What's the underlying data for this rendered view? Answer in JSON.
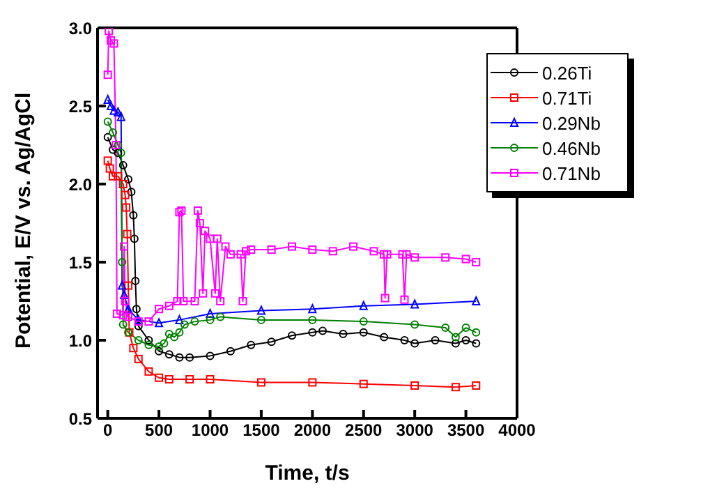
{
  "chart_data": {
    "type": "line",
    "xlabel": "Time, t/s",
    "ylabel": "Potential, E/V vs. Ag/AgCl",
    "xlim": [
      -100,
      4000
    ],
    "xticks": [
      0,
      500,
      1000,
      1500,
      2000,
      2500,
      3000,
      3500,
      4000
    ],
    "ylim": [
      0.5,
      3.0
    ],
    "yticks": [
      {
        "value": 0.5,
        "label": "0.5"
      },
      {
        "value": 1,
        "label": "1.0"
      },
      {
        "value": 1.5,
        "label": "1.5"
      },
      {
        "value": 2,
        "label": "2.0"
      },
      {
        "value": 2.5,
        "label": "2.5"
      },
      {
        "value": 3,
        "label": "3.0"
      }
    ],
    "grid": false,
    "legend": "top right",
    "line_style": "solid",
    "series": [
      {
        "name": "0.26Ti",
        "color": "#000000",
        "marker": "circle",
        "x": [
          0,
          50,
          100,
          150,
          200,
          230,
          250,
          260,
          270,
          280,
          300,
          400,
          500,
          600,
          700,
          800,
          1000,
          1200,
          1400,
          1600,
          1800,
          2000,
          2100,
          2300,
          2500,
          2700,
          2900,
          3000,
          3200,
          3400,
          3500,
          3600
        ],
        "values": [
          2.3,
          2.22,
          2.2,
          2.12,
          2.03,
          1.95,
          1.8,
          1.65,
          1.38,
          1.2,
          1.09,
          1.0,
          0.93,
          0.91,
          0.89,
          0.89,
          0.9,
          0.93,
          0.97,
          0.99,
          1.03,
          1.05,
          1.06,
          1.04,
          1.05,
          1.02,
          1.0,
          0.98,
          1.0,
          0.98,
          1.0,
          0.98
        ]
      },
      {
        "name": "0.71Ti",
        "color": "#ff0000",
        "marker": "square",
        "x": [
          0,
          20,
          50,
          100,
          150,
          170,
          180,
          190,
          200,
          210,
          250,
          300,
          400,
          500,
          600,
          800,
          1000,
          1500,
          2000,
          2500,
          3000,
          3400,
          3600
        ],
        "values": [
          2.15,
          2.1,
          2.05,
          2.05,
          2.0,
          1.93,
          1.85,
          1.68,
          1.35,
          1.05,
          0.95,
          0.88,
          0.8,
          0.76,
          0.75,
          0.75,
          0.75,
          0.73,
          0.73,
          0.72,
          0.71,
          0.7,
          0.71
        ]
      },
      {
        "name": "0.29Nb",
        "color": "#0000ff",
        "marker": "triangle",
        "x": [
          0,
          30,
          60,
          100,
          130,
          140,
          160,
          200,
          300,
          500,
          700,
          1000,
          1500,
          2000,
          2500,
          3000,
          3600
        ],
        "values": [
          2.54,
          2.5,
          2.47,
          2.46,
          2.43,
          1.35,
          1.29,
          1.2,
          1.13,
          1.11,
          1.13,
          1.17,
          1.19,
          1.2,
          1.22,
          1.23,
          1.25
        ]
      },
      {
        "name": "0.46Nb",
        "color": "#008000",
        "marker": "circle",
        "x": [
          0,
          50,
          100,
          130,
          140,
          150,
          200,
          300,
          400,
          500,
          550,
          600,
          650,
          700,
          750,
          850,
          1000,
          1100,
          1500,
          2000,
          2500,
          3000,
          3300,
          3400,
          3500,
          3600
        ],
        "values": [
          2.4,
          2.33,
          2.25,
          2.2,
          1.5,
          1.1,
          1.05,
          1.0,
          0.97,
          0.96,
          0.98,
          1.04,
          1.02,
          1.05,
          1.1,
          1.12,
          1.13,
          1.15,
          1.13,
          1.13,
          1.12,
          1.1,
          1.08,
          1.02,
          1.08,
          1.05
        ]
      },
      {
        "name": "0.71Nb",
        "color": "#ff00ff",
        "marker": "square",
        "x": [
          0,
          10,
          30,
          60,
          80,
          90,
          150,
          160,
          170,
          200,
          300,
          400,
          500,
          600,
          680,
          700,
          720,
          740,
          850,
          880,
          900,
          930,
          950,
          1000,
          1050,
          1070,
          1100,
          1150,
          1200,
          1300,
          1320,
          1350,
          1400,
          1600,
          1800,
          2000,
          2200,
          2400,
          2600,
          2700,
          2710,
          2730,
          2880,
          2900,
          2920,
          3000,
          3300,
          3500,
          3600
        ],
        "values": [
          2.7,
          2.98,
          2.92,
          2.9,
          2.25,
          1.17,
          1.16,
          1.6,
          1.25,
          1.15,
          1.12,
          1.12,
          1.2,
          1.22,
          1.25,
          1.82,
          1.83,
          1.25,
          1.25,
          1.83,
          1.75,
          1.3,
          1.7,
          1.65,
          1.3,
          1.65,
          1.25,
          1.6,
          1.55,
          1.55,
          1.25,
          1.57,
          1.58,
          1.58,
          1.6,
          1.58,
          1.57,
          1.6,
          1.57,
          1.55,
          1.27,
          1.55,
          1.55,
          1.26,
          1.55,
          1.53,
          1.53,
          1.52,
          1.5
        ]
      }
    ]
  }
}
